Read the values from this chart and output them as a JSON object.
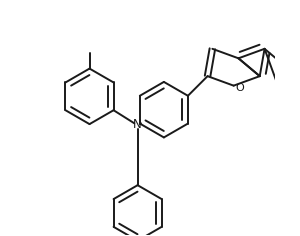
{
  "background_color": "#ffffff",
  "line_color": "#1a1a1a",
  "line_width": 1.4,
  "figsize": [
    3.0,
    2.36
  ],
  "dpi": 100,
  "xlim": [
    -3.5,
    5.5
  ],
  "ylim": [
    -4.2,
    4.2
  ]
}
